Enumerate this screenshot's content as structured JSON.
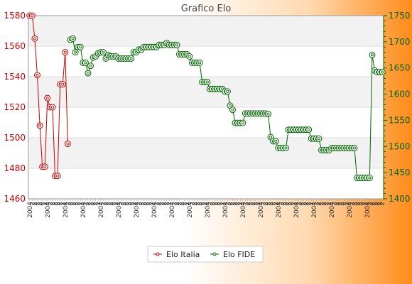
{
  "chart_data": {
    "type": "line",
    "title": "Grafico Elo",
    "grid": "horizontal bands",
    "legend_position": "bottom",
    "y_left": {
      "min": 1460,
      "max": 1580,
      "ticks": [
        1460,
        1480,
        1500,
        1520,
        1540,
        1560,
        1580
      ]
    },
    "y_right": {
      "min": 1400,
      "max": 1750,
      "ticks": [
        1400,
        1450,
        1500,
        1550,
        1600,
        1650,
        1700,
        1750
      ]
    },
    "x_tick_labels": [
      "2004",
      "2",
      "2",
      "2",
      "2",
      "2",
      "2"
    ],
    "n_points": 140,
    "series": [
      {
        "name": "Elo Italia",
        "axis": "left",
        "color": "#cc0000",
        "points": [
          [
            1,
            1580
          ],
          [
            2,
            1580
          ],
          [
            3,
            1565
          ],
          [
            4,
            1541
          ],
          [
            5,
            1508
          ],
          [
            6,
            1481
          ],
          [
            7,
            1481
          ],
          [
            8,
            1526
          ],
          [
            9,
            1520
          ],
          [
            10,
            1520
          ],
          [
            11,
            1475
          ],
          [
            12,
            1475
          ],
          [
            13,
            1535
          ],
          [
            14,
            1535
          ],
          [
            15,
            1556
          ],
          [
            16,
            1496
          ]
        ]
      },
      {
        "name": "Elo FIDE",
        "axis": "right",
        "color": "#006400",
        "points": [
          [
            17,
            1704
          ],
          [
            18,
            1706
          ],
          [
            19,
            1680
          ],
          [
            20,
            1690
          ],
          [
            21,
            1690
          ],
          [
            22,
            1660
          ],
          [
            23,
            1660
          ],
          [
            24,
            1640
          ],
          [
            25,
            1654
          ],
          [
            26,
            1670
          ],
          [
            27,
            1672
          ],
          [
            28,
            1678
          ],
          [
            29,
            1680
          ],
          [
            30,
            1680
          ],
          [
            31,
            1668
          ],
          [
            32,
            1675
          ],
          [
            33,
            1672
          ],
          [
            34,
            1672
          ],
          [
            35,
            1672
          ],
          [
            36,
            1668
          ],
          [
            37,
            1668
          ],
          [
            38,
            1668
          ],
          [
            39,
            1668
          ],
          [
            40,
            1668
          ],
          [
            41,
            1668
          ],
          [
            42,
            1680
          ],
          [
            43,
            1680
          ],
          [
            44,
            1685
          ],
          [
            45,
            1685
          ],
          [
            46,
            1690
          ],
          [
            47,
            1690
          ],
          [
            48,
            1690
          ],
          [
            49,
            1690
          ],
          [
            50,
            1690
          ],
          [
            51,
            1690
          ],
          [
            52,
            1694
          ],
          [
            53,
            1694
          ],
          [
            54,
            1694
          ],
          [
            55,
            1698
          ],
          [
            56,
            1694
          ],
          [
            57,
            1694
          ],
          [
            58,
            1694
          ],
          [
            59,
            1694
          ],
          [
            60,
            1676
          ],
          [
            61,
            1676
          ],
          [
            62,
            1676
          ],
          [
            63,
            1676
          ],
          [
            64,
            1672
          ],
          [
            65,
            1660
          ],
          [
            66,
            1660
          ],
          [
            67,
            1660
          ],
          [
            68,
            1660
          ],
          [
            69,
            1623
          ],
          [
            70,
            1623
          ],
          [
            71,
            1623
          ],
          [
            72,
            1610
          ],
          [
            73,
            1610
          ],
          [
            74,
            1610
          ],
          [
            75,
            1610
          ],
          [
            76,
            1610
          ],
          [
            77,
            1610
          ],
          [
            78,
            1605
          ],
          [
            79,
            1605
          ],
          [
            80,
            1578
          ],
          [
            81,
            1570
          ],
          [
            82,
            1545
          ],
          [
            83,
            1545
          ],
          [
            84,
            1545
          ],
          [
            85,
            1545
          ],
          [
            86,
            1563
          ],
          [
            87,
            1563
          ],
          [
            88,
            1563
          ],
          [
            89,
            1563
          ],
          [
            90,
            1563
          ],
          [
            91,
            1563
          ],
          [
            92,
            1563
          ],
          [
            93,
            1563
          ],
          [
            94,
            1563
          ],
          [
            95,
            1562
          ],
          [
            96,
            1518
          ],
          [
            97,
            1510
          ],
          [
            98,
            1510
          ],
          [
            99,
            1497
          ],
          [
            100,
            1497
          ],
          [
            101,
            1497
          ],
          [
            102,
            1497
          ],
          [
            103,
            1532
          ],
          [
            104,
            1532
          ],
          [
            105,
            1532
          ],
          [
            106,
            1532
          ],
          [
            107,
            1532
          ],
          [
            108,
            1532
          ],
          [
            109,
            1532
          ],
          [
            110,
            1532
          ],
          [
            111,
            1532
          ],
          [
            112,
            1515
          ],
          [
            113,
            1515
          ],
          [
            114,
            1515
          ],
          [
            115,
            1515
          ],
          [
            116,
            1493
          ],
          [
            117,
            1493
          ],
          [
            118,
            1493
          ],
          [
            119,
            1493
          ],
          [
            120,
            1497
          ],
          [
            121,
            1497
          ],
          [
            122,
            1497
          ],
          [
            123,
            1497
          ],
          [
            124,
            1497
          ],
          [
            125,
            1497
          ],
          [
            126,
            1497
          ],
          [
            127,
            1497
          ],
          [
            128,
            1497
          ],
          [
            129,
            1497
          ],
          [
            130,
            1440
          ],
          [
            131,
            1440
          ],
          [
            132,
            1440
          ],
          [
            133,
            1440
          ],
          [
            134,
            1440
          ],
          [
            135,
            1440
          ],
          [
            136,
            1675
          ],
          [
            137,
            1645
          ],
          [
            138,
            1642
          ],
          [
            139,
            1642
          ],
          [
            140,
            1642
          ]
        ]
      }
    ]
  }
}
